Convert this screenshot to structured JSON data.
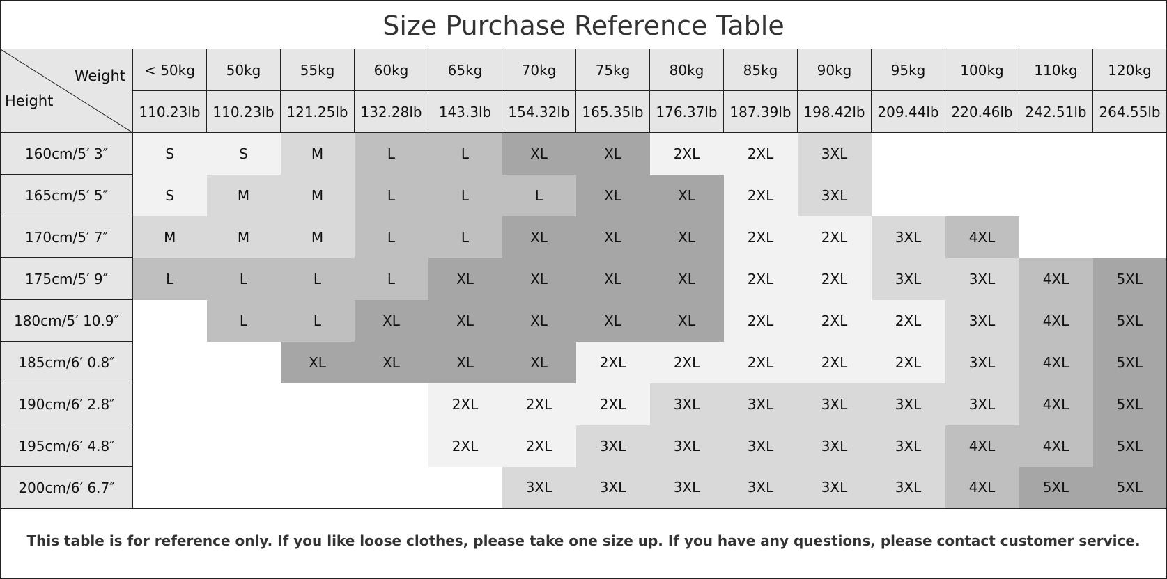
{
  "title": "Size Purchase Reference Table",
  "corner": {
    "weight_label": "Weight",
    "height_label": "Height"
  },
  "weights_kg": [
    "< 50kg",
    "50kg",
    "55kg",
    "60kg",
    "65kg",
    "70kg",
    "75kg",
    "80kg",
    "85kg",
    "90kg",
    "95kg",
    "100kg",
    "110kg",
    "120kg"
  ],
  "weights_lb": [
    "110.23lb",
    "110.23lb",
    "121.25lb",
    "132.28lb",
    "143.3lb",
    "154.32lb",
    "165.35lb",
    "176.37lb",
    "187.39lb",
    "198.42lb",
    "209.44lb",
    "220.46lb",
    "242.51lb",
    "264.55lb"
  ],
  "rows": [
    {
      "height": "160cm/5′ 3″",
      "sizes": [
        "S",
        "S",
        "M",
        "L",
        "L",
        "XL",
        "XL",
        "2XL",
        "2XL",
        "3XL",
        "",
        "",
        "",
        ""
      ]
    },
    {
      "height": "165cm/5′ 5″",
      "sizes": [
        "S",
        "M",
        "M",
        "L",
        "L",
        "L",
        "XL",
        "XL",
        "2XL",
        "3XL",
        "",
        "",
        "",
        ""
      ]
    },
    {
      "height": "170cm/5′ 7″",
      "sizes": [
        "M",
        "M",
        "M",
        "L",
        "L",
        "XL",
        "XL",
        "XL",
        "2XL",
        "2XL",
        "3XL",
        "4XL",
        "",
        ""
      ]
    },
    {
      "height": "175cm/5′ 9″",
      "sizes": [
        "L",
        "L",
        "L",
        "L",
        "XL",
        "XL",
        "XL",
        "XL",
        "2XL",
        "2XL",
        "3XL",
        "3XL",
        "4XL",
        "5XL"
      ]
    },
    {
      "height": "180cm/5′ 10.9″",
      "sizes": [
        "",
        "L",
        "L",
        "XL",
        "XL",
        "XL",
        "XL",
        "XL",
        "2XL",
        "2XL",
        "2XL",
        "3XL",
        "4XL",
        "5XL"
      ]
    },
    {
      "height": "185cm/6′ 0.8″",
      "sizes": [
        "",
        "",
        "XL",
        "XL",
        "XL",
        "XL",
        "2XL",
        "2XL",
        "2XL",
        "2XL",
        "2XL",
        "3XL",
        "4XL",
        "5XL"
      ]
    },
    {
      "height": "190cm/6′ 2.8″",
      "sizes": [
        "",
        "",
        "",
        "",
        "2XL",
        "2XL",
        "2XL",
        "3XL",
        "3XL",
        "3XL",
        "3XL",
        "3XL",
        "4XL",
        "5XL"
      ]
    },
    {
      "height": "195cm/6′ 4.8″",
      "sizes": [
        "",
        "",
        "",
        "",
        "2XL",
        "2XL",
        "3XL",
        "3XL",
        "3XL",
        "3XL",
        "3XL",
        "4XL",
        "4XL",
        "5XL"
      ]
    },
    {
      "height": "200cm/6′ 6.7″",
      "sizes": [
        "",
        "",
        "",
        "",
        "",
        "3XL",
        "3XL",
        "3XL",
        "3XL",
        "3XL",
        "3XL",
        "4XL",
        "5XL",
        "5XL"
      ]
    }
  ],
  "size_colors": {
    "S": "#f2f2f2",
    "M": "#d9d9d9",
    "L": "#bfbfbf",
    "XL": "#a6a6a6",
    "2XL": "#f2f2f2",
    "3XL": "#d9d9d9",
    "4XL": "#bfbfbf",
    "5XL": "#a6a6a6",
    "": "#ffffff"
  },
  "footnote": "This table is for reference only. If you like loose clothes, please take one size up. If you have any questions, please contact customer service."
}
